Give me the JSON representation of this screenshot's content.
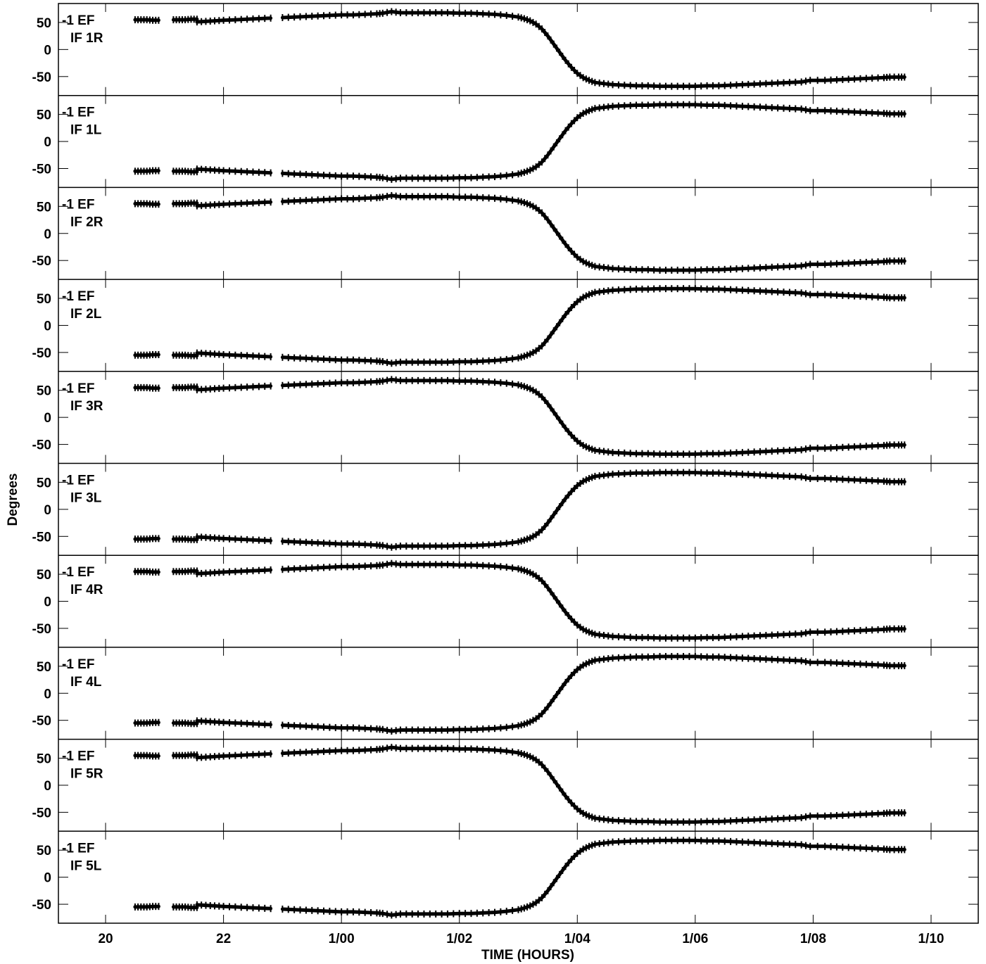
{
  "chart_data": {
    "type": "scatter",
    "ylabel": "Degrees",
    "xlabel": "TIME (HOURS)",
    "x_unit": "hours",
    "xlim": [
      19.2,
      34.8
    ],
    "ylim": [
      -85,
      85
    ],
    "x_ticks": [
      {
        "value": 20,
        "label": "20"
      },
      {
        "value": 22,
        "label": "22"
      },
      {
        "value": 24,
        "label": "1/00"
      },
      {
        "value": 26,
        "label": "1/02"
      },
      {
        "value": 28,
        "label": "1/04"
      },
      {
        "value": 30,
        "label": "1/06"
      },
      {
        "value": 32,
        "label": "1/08"
      },
      {
        "value": 34,
        "label": "1/10"
      }
    ],
    "y_ticks": [
      {
        "value": 50,
        "label": "50"
      },
      {
        "value": 0,
        "label": "0"
      },
      {
        "value": -50,
        "label": "-50"
      }
    ],
    "grid": false,
    "panels": [
      {
        "label1": "-1 EF",
        "label2": "IF 1R",
        "sign": 1
      },
      {
        "label1": "-1 EF",
        "label2": "IF 1L",
        "sign": -1
      },
      {
        "label1": "-1 EF",
        "label2": "IF 2R",
        "sign": 1
      },
      {
        "label1": "-1 EF",
        "label2": "IF 2L",
        "sign": -1
      },
      {
        "label1": "-1 EF",
        "label2": "IF 3R",
        "sign": 1
      },
      {
        "label1": "-1 EF",
        "label2": "IF 3L",
        "sign": -1
      },
      {
        "label1": "-1 EF",
        "label2": "IF 4R",
        "sign": 1
      },
      {
        "label1": "-1 EF",
        "label2": "IF 4L",
        "sign": -1
      },
      {
        "label1": "-1 EF",
        "label2": "IF 5R",
        "sign": 1
      },
      {
        "label1": "-1 EF",
        "label2": "IF 5L",
        "sign": -1
      }
    ],
    "series_base": {
      "segments": [
        {
          "x": [
            20.5,
            20.6,
            20.7,
            20.8,
            20.9
          ],
          "y": [
            55,
            55,
            55,
            54,
            54
          ]
        },
        {
          "x": [
            21.15,
            21.25,
            21.35,
            21.45,
            21.55
          ],
          "y": [
            55,
            55,
            55,
            56,
            56
          ]
        },
        {
          "x": [
            21.55,
            21.7,
            21.85,
            22.0,
            22.2,
            22.4,
            22.6,
            22.8
          ],
          "y": [
            51,
            52,
            53,
            54,
            55,
            56,
            57,
            58
          ]
        },
        {
          "x": [
            23.0,
            23.2,
            23.4,
            23.6,
            23.8,
            24.0,
            24.2,
            24.4,
            24.6,
            24.7,
            24.85,
            25.0,
            25.2,
            25.4,
            25.6,
            25.8,
            26.0,
            26.2,
            26.4,
            26.6,
            26.8,
            27.0,
            27.1,
            27.2,
            27.3,
            27.4,
            27.5,
            27.6,
            27.7,
            27.8,
            27.9,
            28.0,
            28.1,
            28.2,
            28.3,
            28.45,
            28.6,
            28.8,
            29.0,
            29.2,
            29.4,
            29.6,
            29.8,
            30.0,
            30.2,
            30.4,
            30.6,
            30.8,
            31.0,
            31.2,
            31.4,
            31.6,
            31.8,
            31.95,
            32.2,
            32.4,
            32.6,
            32.8,
            33.0,
            33.2,
            33.3,
            33.45,
            33.55
          ],
          "y": [
            59,
            60,
            61,
            62,
            63,
            64,
            64,
            65,
            66,
            67,
            70,
            68,
            68,
            68,
            68,
            68,
            67,
            67,
            66,
            65,
            63,
            60,
            57,
            53,
            47,
            38,
            25,
            10,
            -5,
            -20,
            -33,
            -44,
            -52,
            -57,
            -61,
            -63,
            -65,
            -66,
            -67,
            -67,
            -68,
            -68,
            -68,
            -68,
            -67,
            -67,
            -66,
            -65,
            -64,
            -63,
            -62,
            -61,
            -60,
            -57,
            -57,
            -56,
            -55,
            -54,
            -53,
            -52,
            -51,
            -51,
            -51
          ]
        }
      ]
    }
  }
}
